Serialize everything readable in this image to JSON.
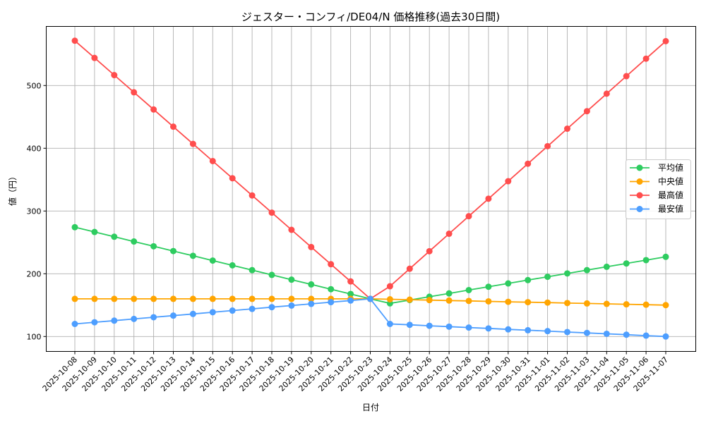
{
  "chart_data": {
    "type": "line",
    "title": "ジェスター・コンフィ/DE04/N 価格推移(過去30日間)",
    "xlabel": "日付",
    "ylabel": "値（円）",
    "ylim": [
      75,
      595
    ],
    "yticks": [
      100,
      200,
      300,
      400,
      500
    ],
    "grid": true,
    "legend_position": "center right",
    "categories": [
      "2025-10-08",
      "2025-10-09",
      "2025-10-10",
      "2025-10-11",
      "2025-10-12",
      "2025-10-13",
      "2025-10-14",
      "2025-10-15",
      "2025-10-16",
      "2025-10-17",
      "2025-10-18",
      "2025-10-19",
      "2025-10-20",
      "2025-10-21",
      "2025-10-22",
      "2025-10-23",
      "2025-10-24",
      "2025-10-25",
      "2025-10-26",
      "2025-10-27",
      "2025-10-28",
      "2025-10-29",
      "2025-10-30",
      "2025-10-31",
      "2025-11-01",
      "2025-11-02",
      "2025-11-03",
      "2025-11-04",
      "2025-11-05",
      "2025-11-06",
      "2025-11-07"
    ],
    "series": [
      {
        "name": "平均値",
        "color": "#2ecc60",
        "values": [
          274.2,
          266.6,
          259.0,
          251.4,
          243.8,
          236.2,
          228.6,
          221.0,
          213.4,
          205.8,
          198.2,
          190.6,
          183.0,
          175.4,
          167.8,
          160.0,
          152.8,
          158.1,
          163.4,
          168.7,
          174.0,
          179.3,
          184.6,
          189.9,
          195.2,
          200.5,
          205.8,
          211.1,
          216.4,
          221.7,
          227.0
        ]
      },
      {
        "name": "中央値",
        "color": "#ffa500",
        "values": [
          160,
          160,
          160,
          160,
          160,
          160,
          160,
          160,
          160,
          160,
          160,
          160,
          160,
          160,
          160,
          160,
          159.3,
          158.7,
          158.0,
          157.3,
          156.7,
          156.0,
          155.3,
          154.7,
          154.0,
          153.3,
          152.7,
          152.0,
          151.3,
          150.7,
          150.0
        ]
      },
      {
        "name": "最高値",
        "color": "#ff4d4d",
        "values": [
          571.4,
          544.0,
          516.6,
          489.2,
          461.8,
          434.4,
          407.0,
          379.6,
          352.2,
          324.8,
          297.4,
          270.0,
          242.6,
          215.2,
          187.8,
          160.0,
          180.1,
          208.0,
          235.9,
          263.8,
          291.7,
          319.6,
          347.5,
          375.4,
          403.3,
          431.2,
          459.1,
          487.0,
          514.9,
          542.8,
          570.7
        ]
      },
      {
        "name": "最安値",
        "color": "#4d9eff",
        "values": [
          120.0,
          122.7,
          125.3,
          128.0,
          130.7,
          133.3,
          136.0,
          138.7,
          141.3,
          144.0,
          146.7,
          149.3,
          152.0,
          154.7,
          157.3,
          160.0,
          120.0,
          118.6,
          117.1,
          115.7,
          114.3,
          112.9,
          111.4,
          110.0,
          108.6,
          107.1,
          105.7,
          104.3,
          102.9,
          101.4,
          100.0
        ]
      }
    ]
  }
}
